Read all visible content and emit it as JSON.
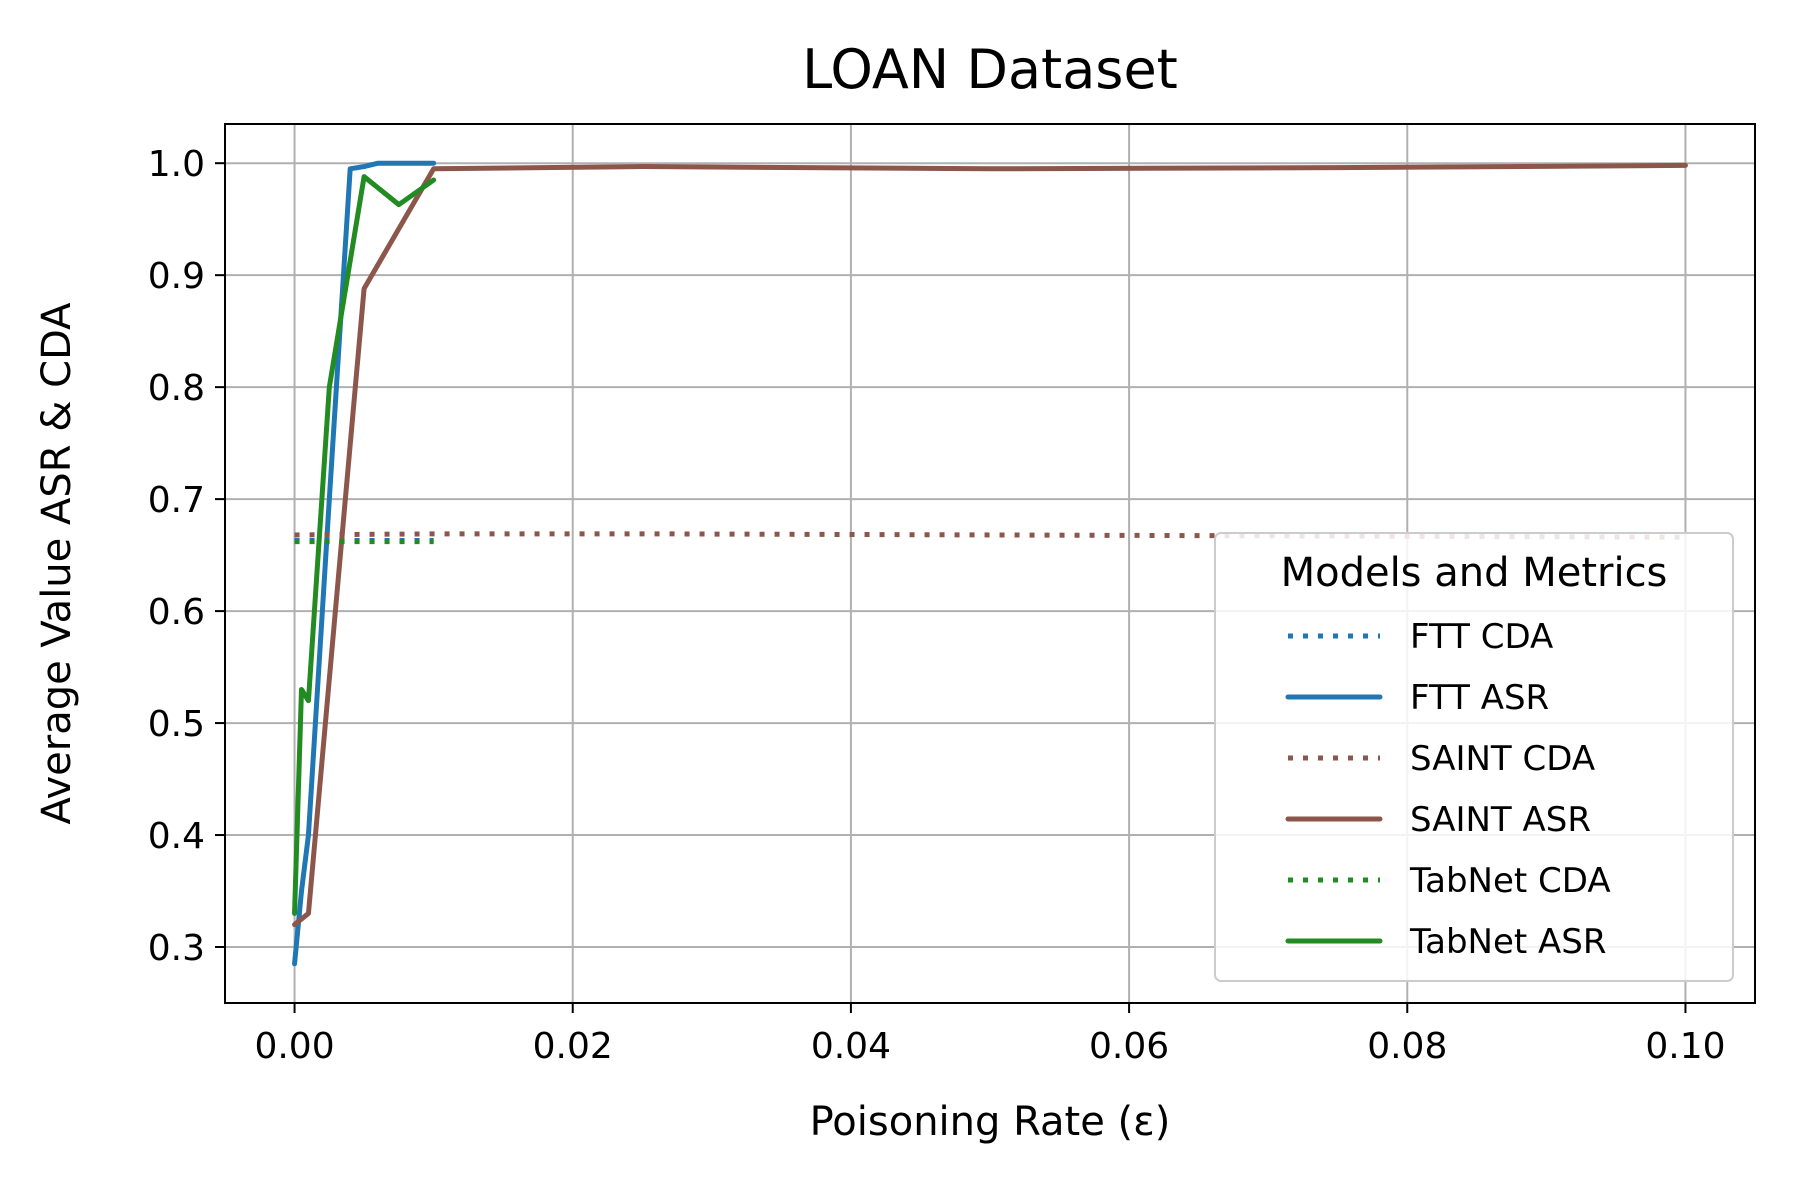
{
  "chart_data": {
    "type": "line",
    "title": "LOAN Dataset",
    "xlabel": "Poisoning Rate (ε)",
    "ylabel": "Average Value ASR & CDA",
    "xlim": [
      -0.005,
      0.105
    ],
    "ylim": [
      0.25,
      1.035
    ],
    "xticks": [
      0.0,
      0.02,
      0.04,
      0.06,
      0.08,
      0.1
    ],
    "xtick_labels": [
      "0.00",
      "0.02",
      "0.04",
      "0.06",
      "0.08",
      "0.10"
    ],
    "yticks": [
      0.3,
      0.4,
      0.5,
      0.6,
      0.7,
      0.8,
      0.9,
      1.0
    ],
    "ytick_labels": [
      "0.3",
      "0.4",
      "0.5",
      "0.6",
      "0.7",
      "0.8",
      "0.9",
      "1.0"
    ],
    "grid": true,
    "legend": {
      "title": "Models and Metrics",
      "position": "lower-right"
    },
    "series": [
      {
        "name": "FTT CDA",
        "style": "dotted",
        "color": "#1f77b4",
        "x": [
          0.0,
          0.0005,
          0.001,
          0.0025,
          0.004,
          0.005,
          0.006,
          0.0075,
          0.01
        ],
        "y": [
          0.663,
          0.663,
          0.663,
          0.663,
          0.663,
          0.663,
          0.663,
          0.663,
          0.663
        ]
      },
      {
        "name": "FTT ASR",
        "style": "solid",
        "color": "#1f77b4",
        "x": [
          0.0,
          0.0005,
          0.001,
          0.0025,
          0.004,
          0.005,
          0.006,
          0.0075,
          0.01
        ],
        "y": [
          0.285,
          0.35,
          0.4,
          0.7,
          0.995,
          0.997,
          1.0,
          1.0,
          1.0
        ]
      },
      {
        "name": "SAINT CDA",
        "style": "dotted",
        "color": "#8c564b",
        "x": [
          0.0,
          0.01,
          0.025,
          0.05,
          0.075,
          0.1
        ],
        "y": [
          0.668,
          0.669,
          0.669,
          0.668,
          0.667,
          0.666
        ]
      },
      {
        "name": "SAINT ASR",
        "style": "solid",
        "color": "#8c564b",
        "x": [
          0.0,
          0.001,
          0.005,
          0.01,
          0.025,
          0.05,
          0.075,
          0.1
        ],
        "y": [
          0.32,
          0.33,
          0.888,
          0.995,
          0.997,
          0.995,
          0.996,
          0.998
        ]
      },
      {
        "name": "TabNet CDA",
        "style": "dotted",
        "color": "#228b22",
        "x": [
          0.0,
          0.0005,
          0.001,
          0.0025,
          0.005,
          0.0075,
          0.01
        ],
        "y": [
          0.662,
          0.662,
          0.662,
          0.662,
          0.662,
          0.662,
          0.662
        ]
      },
      {
        "name": "TabNet ASR",
        "style": "solid",
        "color": "#228b22",
        "x": [
          0.0,
          0.0005,
          0.001,
          0.0025,
          0.005,
          0.0075,
          0.01
        ],
        "y": [
          0.33,
          0.53,
          0.52,
          0.8,
          0.988,
          0.963,
          0.985
        ]
      }
    ]
  }
}
